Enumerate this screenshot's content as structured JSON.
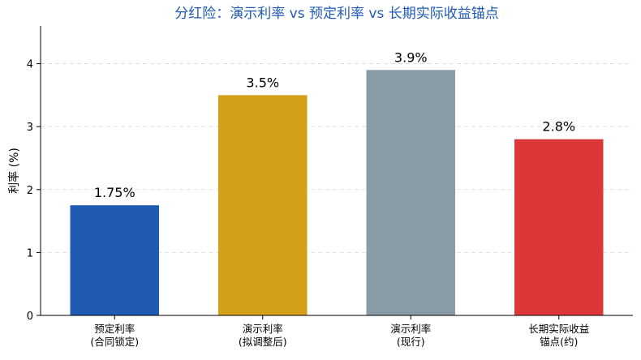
{
  "chart_data": {
    "type": "bar",
    "title": "分红险：演示利率 vs 预定利率 vs 长期实际收益锚点",
    "ylabel": "利率 (%)",
    "xlabel": "",
    "categories": [
      [
        "预定利率",
        "(合同锁定)"
      ],
      [
        "演示利率",
        "(拟调整后)"
      ],
      [
        "演示利率",
        "(现行)"
      ],
      [
        "长期实际收益",
        "锚点(约)"
      ]
    ],
    "values": [
      1.75,
      3.5,
      3.9,
      2.8
    ],
    "value_labels": [
      "1.75%",
      "3.5%",
      "3.9%",
      "2.8%"
    ],
    "colors": [
      "#1f5bb3",
      "#d4a017",
      "#8a9ba8",
      "#dc3838"
    ],
    "title_color": "#1f5bb3",
    "ylim": [
      0,
      4.6
    ],
    "yticks": [
      0,
      1,
      2,
      3,
      4
    ],
    "grid": "horizontal-dashed",
    "legend": "none"
  }
}
